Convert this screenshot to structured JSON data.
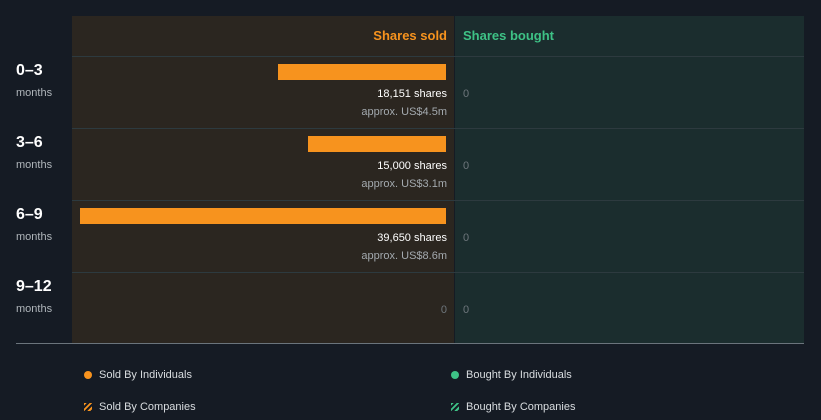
{
  "chart_data": {
    "type": "bar",
    "title": "",
    "categories": [
      "0–3",
      "3–6",
      "6–9",
      "9–12"
    ],
    "category_unit": "months",
    "series": [
      {
        "name": "Shares sold",
        "values": [
          18151,
          15000,
          39650,
          0
        ],
        "color": "#f7931e"
      },
      {
        "name": "Shares bought",
        "values": [
          0,
          0,
          0,
          0
        ],
        "color": "#3ec286"
      }
    ],
    "sold_labels": [
      "18,151 shares",
      "15,000 shares",
      "39,650 shares",
      "0"
    ],
    "sold_values_label": [
      "approx. US$4.5m",
      "approx. US$3.1m",
      "approx. US$8.6m",
      ""
    ],
    "bought_labels": [
      "0",
      "0",
      "0",
      "0"
    ],
    "legend": [
      {
        "label": "Sold By Individuals",
        "color": "#f7931e",
        "style": "dot"
      },
      {
        "label": "Bought By Individuals",
        "color": "#3ec286",
        "style": "dot"
      },
      {
        "label": "Sold By Companies",
        "color": "#f7931e",
        "style": "striped"
      },
      {
        "label": "Bought By Companies",
        "color": "#3ec286",
        "style": "striped"
      }
    ],
    "legend_placement": "bottom"
  }
}
